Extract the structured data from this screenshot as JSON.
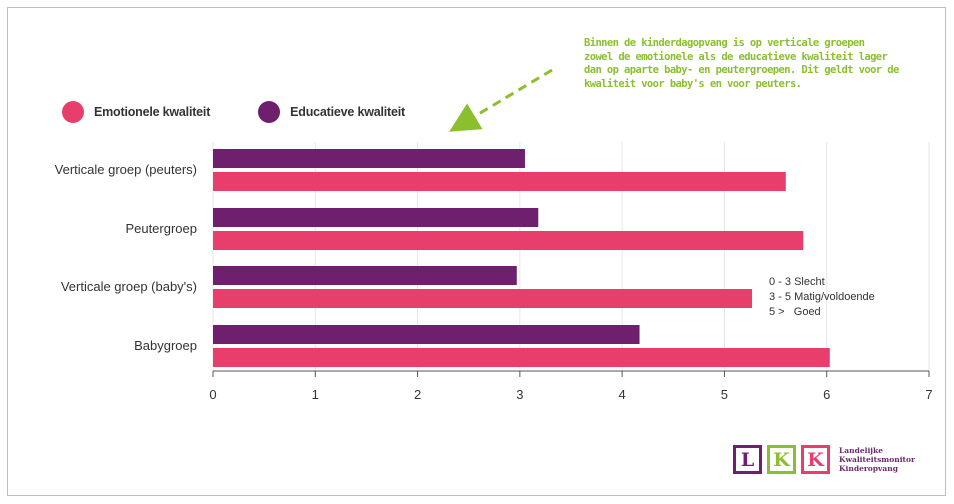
{
  "legend": {
    "items": [
      {
        "label": "Emotionele kwaliteit",
        "color": "#e83e6c"
      },
      {
        "label": "Educatieve kwaliteit",
        "color": "#6e1f6e"
      }
    ]
  },
  "annotation": {
    "lines": [
      "Binnen de kinderdagopvang is op verticale groepen",
      "zowel de emotionele als de educatieve kwaliteit lager",
      "dan op aparte baby- en peutergroepen. Dit geldt voor de",
      "kwaliteit voor baby's en voor peuters."
    ],
    "color": "#8bbf2e"
  },
  "scale_note": {
    "lines": [
      "0 - 3 Slecht",
      "3 - 5 Matig/voldoende",
      "5 >   Goed"
    ]
  },
  "logo": {
    "letters": [
      {
        "char": "L",
        "color": "#6e1f6e"
      },
      {
        "char": "K",
        "color": "#8bbf2e"
      },
      {
        "char": "K",
        "color": "#e83e6c"
      }
    ],
    "text_lines": [
      "Landelijke",
      "Kwaliteitsmonitor",
      "Kinderopvang"
    ]
  },
  "chart_data": {
    "type": "bar",
    "orientation": "horizontal",
    "categories": [
      "Verticale groep (peuters)",
      "Peutergroep",
      "Verticale groep (baby's)",
      "Babygroep"
    ],
    "series": [
      {
        "name": "Educatieve kwaliteit",
        "color": "#6e1f6e",
        "values": [
          3.05,
          3.18,
          2.97,
          4.17
        ]
      },
      {
        "name": "Emotionele kwaliteit",
        "color": "#e83e6c",
        "values": [
          5.6,
          5.77,
          5.27,
          6.03
        ]
      }
    ],
    "xlim": [
      0,
      7
    ],
    "xticks": [
      "0",
      "1",
      "2",
      "3",
      "4",
      "5",
      "6",
      "7"
    ],
    "grid": true,
    "legend_position": "top-left"
  }
}
